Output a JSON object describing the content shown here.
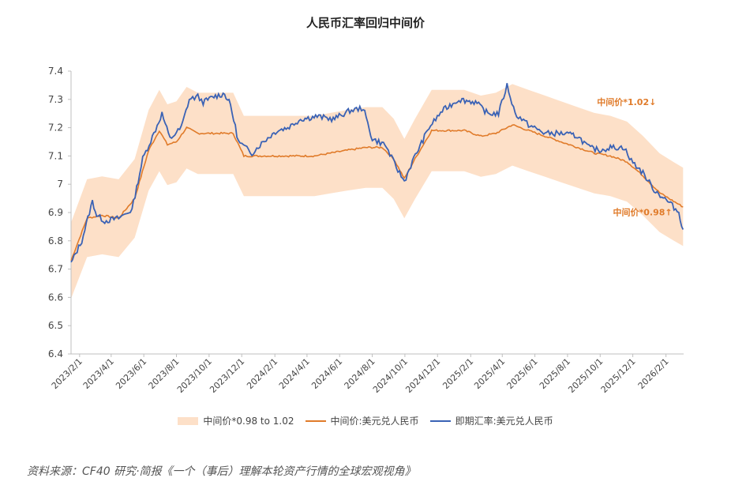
{
  "chart_data": {
    "type": "line",
    "title": "人民币汇率回归中间价",
    "ylim": [
      6.4,
      7.4
    ],
    "yticks": [
      "6.4",
      "6.5",
      "6.6",
      "6.7",
      "6.8",
      "6.9",
      "7",
      "7.1",
      "7.2",
      "7.3",
      "7.4"
    ],
    "x_tick_labels": [
      "2023/2/1",
      "2023/4/1",
      "2023/6/1",
      "2023/8/1",
      "2023/10/1",
      "2023/12/1",
      "2024/2/1",
      "2024/4/1",
      "2024/6/1",
      "2024/8/1",
      "2024/10/1",
      "2024/12/1",
      "2025/2/1",
      "2025/4/1",
      "2025/6/1",
      "2025/8/1",
      "2025/10/1",
      "2025/12/1",
      "2026/2/1"
    ],
    "series": [
      {
        "name": "中间价:美元兑人民币",
        "color": "#e07b2a",
        "points": [
          [
            "2023-01-16",
            6.73
          ],
          [
            "2023-02-15",
            6.88
          ],
          [
            "2023-03-15",
            6.89
          ],
          [
            "2023-04-15",
            6.88
          ],
          [
            "2023-05-15",
            6.95
          ],
          [
            "2023-06-10",
            7.12
          ],
          [
            "2023-06-30",
            7.19
          ],
          [
            "2023-07-15",
            7.14
          ],
          [
            "2023-08-01",
            7.15
          ],
          [
            "2023-08-20",
            7.2
          ],
          [
            "2023-09-10",
            7.18
          ],
          [
            "2023-10-15",
            7.18
          ],
          [
            "2023-11-15",
            7.18
          ],
          [
            "2023-12-05",
            7.1
          ],
          [
            "2024-01-10",
            7.1
          ],
          [
            "2024-02-15",
            7.1
          ],
          [
            "2024-03-15",
            7.1
          ],
          [
            "2024-04-15",
            7.1
          ],
          [
            "2024-05-15",
            7.11
          ],
          [
            "2024-06-15",
            7.12
          ],
          [
            "2024-07-20",
            7.13
          ],
          [
            "2024-08-20",
            7.13
          ],
          [
            "2024-09-10",
            7.09
          ],
          [
            "2024-09-30",
            7.02
          ],
          [
            "2024-10-20",
            7.09
          ],
          [
            "2024-11-20",
            7.19
          ],
          [
            "2024-12-20",
            7.19
          ],
          [
            "2025-01-20",
            7.19
          ],
          [
            "2025-02-20",
            7.17
          ],
          [
            "2025-03-20",
            7.18
          ],
          [
            "2025-04-20",
            7.21
          ],
          [
            "2025-05-20",
            7.19
          ],
          [
            "2025-06-20",
            7.17
          ],
          [
            "2025-07-20",
            7.15
          ],
          [
            "2025-08-20",
            7.13
          ],
          [
            "2025-09-20",
            7.11
          ],
          [
            "2025-10-20",
            7.1
          ],
          [
            "2025-11-20",
            7.08
          ],
          [
            "2025-12-20",
            7.03
          ],
          [
            "2026-01-20",
            6.97
          ],
          [
            "2026-02-15",
            6.94
          ],
          [
            "2026-03-05",
            6.92
          ]
        ]
      },
      {
        "name": "即期汇率:美元兑人民币",
        "color": "#3a62b5",
        "points": [
          [
            "2023-01-16",
            6.72
          ],
          [
            "2023-02-05",
            6.8
          ],
          [
            "2023-02-25",
            6.94
          ],
          [
            "2023-03-05",
            6.89
          ],
          [
            "2023-03-20",
            6.87
          ],
          [
            "2023-04-15",
            6.88
          ],
          [
            "2023-05-10",
            6.91
          ],
          [
            "2023-05-30",
            7.09
          ],
          [
            "2023-06-20",
            7.18
          ],
          [
            "2023-07-05",
            7.25
          ],
          [
            "2023-07-20",
            7.16
          ],
          [
            "2023-08-10",
            7.2
          ],
          [
            "2023-08-25",
            7.3
          ],
          [
            "2023-09-10",
            7.31
          ],
          [
            "2023-09-20",
            7.29
          ],
          [
            "2023-10-10",
            7.31
          ],
          [
            "2023-10-30",
            7.32
          ],
          [
            "2023-11-10",
            7.28
          ],
          [
            "2023-11-25",
            7.15
          ],
          [
            "2023-12-20",
            7.11
          ],
          [
            "2024-01-10",
            7.15
          ],
          [
            "2024-02-05",
            7.19
          ],
          [
            "2024-02-25",
            7.2
          ],
          [
            "2024-03-20",
            7.23
          ],
          [
            "2024-04-20",
            7.24
          ],
          [
            "2024-05-20",
            7.23
          ],
          [
            "2024-06-20",
            7.26
          ],
          [
            "2024-07-15",
            7.27
          ],
          [
            "2024-08-01",
            7.16
          ],
          [
            "2024-08-25",
            7.14
          ],
          [
            "2024-09-15",
            7.06
          ],
          [
            "2024-09-30",
            7.01
          ],
          [
            "2024-10-15",
            7.08
          ],
          [
            "2024-11-15",
            7.2
          ],
          [
            "2024-12-10",
            7.26
          ],
          [
            "2025-01-10",
            7.3
          ],
          [
            "2025-02-10",
            7.29
          ],
          [
            "2025-03-05",
            7.25
          ],
          [
            "2025-03-25",
            7.25
          ],
          [
            "2025-04-10",
            7.35
          ],
          [
            "2025-04-25",
            7.25
          ],
          [
            "2025-05-20",
            7.21
          ],
          [
            "2025-06-20",
            7.18
          ],
          [
            "2025-07-20",
            7.18
          ],
          [
            "2025-08-20",
            7.17
          ],
          [
            "2025-09-10",
            7.13
          ],
          [
            "2025-09-30",
            7.12
          ],
          [
            "2025-10-20",
            7.13
          ],
          [
            "2025-11-15",
            7.13
          ],
          [
            "2025-11-25",
            7.09
          ],
          [
            "2025-12-20",
            7.04
          ],
          [
            "2026-01-10",
            6.98
          ],
          [
            "2026-02-10",
            6.93
          ],
          [
            "2026-02-25",
            6.9
          ],
          [
            "2026-03-05",
            6.84
          ]
        ]
      }
    ],
    "band": {
      "name": "中间价*0.98 to 1.02",
      "color": "#fde0c8"
    },
    "annotations": [
      {
        "text": "中间价*1.02↓",
        "date": "2025-09-25",
        "y": 7.28,
        "color": "#e07b2a"
      },
      {
        "text": "中间价*0.98↑",
        "date": "2025-10-25",
        "y": 6.89,
        "color": "#e07b2a"
      }
    ]
  },
  "source_note": "资料来源：CF40 研究·简报《一个（事后）理解本轮资产行情的全球宏观视角》"
}
